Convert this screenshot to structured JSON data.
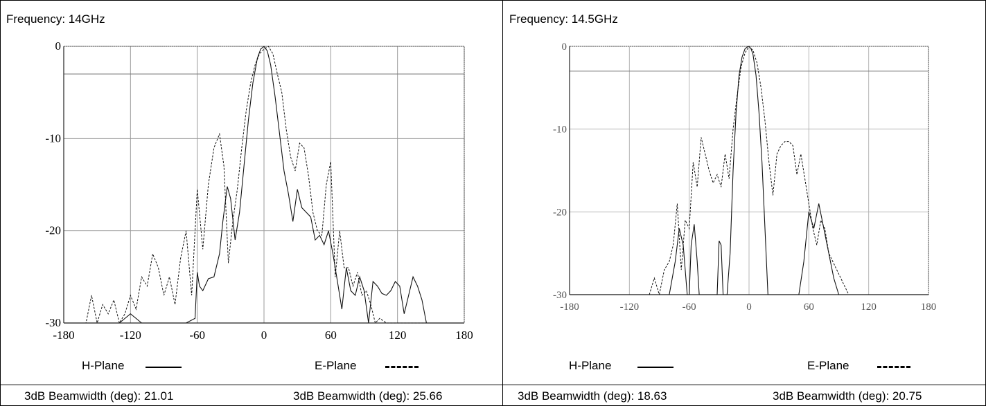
{
  "panels": [
    {
      "frequency_label": "Frequency: 14GHz",
      "h_plane_label": "H-Plane",
      "e_plane_label": "E-Plane",
      "h_beamwidth": "3dB Beamwidth (deg): 21.01",
      "e_beamwidth": "3dB Beamwidth (deg): 25.66"
    },
    {
      "frequency_label": "Frequency: 14.5GHz",
      "h_plane_label": "H-Plane",
      "e_plane_label": "E-Plane",
      "h_beamwidth": "3dB Beamwidth (deg): 18.63",
      "e_beamwidth": "3dB Beamwidth (deg): 20.75"
    }
  ],
  "chart_data": [
    {
      "type": "line",
      "xlim": [
        -180,
        180
      ],
      "ylim": [
        -30,
        0
      ],
      "x_ticks": [
        "-180",
        "-120",
        "-60",
        "0",
        "60",
        "120",
        "180"
      ],
      "y_ticks": [
        "0",
        "-10",
        "-20",
        "-30"
      ],
      "grid": true,
      "series": [
        {
          "name": "H-Plane",
          "style": "solid",
          "x": [
            -180,
            -150,
            -130,
            -120,
            -110,
            -100,
            -90,
            -80,
            -70,
            -62,
            -60,
            -58,
            -55,
            -50,
            -45,
            -40,
            -37,
            -33,
            -30,
            -26,
            -22,
            -18,
            -14,
            -10,
            -6,
            -3,
            0,
            3,
            6,
            10,
            14,
            18,
            22,
            26,
            30,
            34,
            38,
            42,
            46,
            50,
            54,
            58,
            62,
            66,
            70,
            74,
            78,
            82,
            86,
            90,
            94,
            98,
            102,
            106,
            110,
            114,
            118,
            122,
            126,
            130,
            134,
            138,
            142,
            146,
            150,
            160,
            180
          ],
          "y": [
            -30,
            -30,
            -30,
            -29,
            -30,
            -30,
            -30,
            -30,
            -30,
            -29.5,
            -24.5,
            -26,
            -26.5,
            -25.2,
            -25,
            -22.5,
            -19,
            -15.2,
            -16.5,
            -21,
            -18,
            -13,
            -8,
            -4,
            -1.3,
            -0.3,
            0,
            -0.5,
            -2,
            -5.5,
            -9.5,
            -13.5,
            -16,
            -19,
            -15.5,
            -17.5,
            -18,
            -18.5,
            -21,
            -20.5,
            -21.5,
            -20,
            -22.5,
            -25.5,
            -28.5,
            -24,
            -26.5,
            -27,
            -25,
            -26.5,
            -30,
            -25.5,
            -26,
            -26.8,
            -27,
            -26.5,
            -25.5,
            -26,
            -29,
            -27,
            -25,
            -26,
            -27.5,
            -30,
            -30,
            -30,
            -30
          ]
        },
        {
          "name": "E-Plane",
          "style": "dashed",
          "x": [
            -180,
            -170,
            -160,
            -155,
            -150,
            -145,
            -140,
            -135,
            -130,
            -125,
            -120,
            -115,
            -110,
            -105,
            -100,
            -95,
            -90,
            -85,
            -80,
            -75,
            -70,
            -65,
            -60,
            -55,
            -50,
            -45,
            -40,
            -36,
            -32,
            -28,
            -24,
            -20,
            -16,
            -12,
            -8,
            -4,
            0,
            4,
            8,
            12,
            16,
            20,
            24,
            28,
            32,
            36,
            40,
            44,
            48,
            52,
            56,
            60,
            64,
            68,
            72,
            76,
            80,
            84,
            88,
            92,
            96,
            100,
            104,
            110,
            120,
            180
          ],
          "y": [
            -30,
            -30,
            -30,
            -27,
            -30,
            -28,
            -29,
            -27.5,
            -30,
            -29,
            -27,
            -28.5,
            -25,
            -26,
            -22.5,
            -24,
            -27,
            -25,
            -28,
            -23,
            -20,
            -27,
            -15.5,
            -22,
            -15,
            -11,
            -9.5,
            -13,
            -23.5,
            -19,
            -15.5,
            -11,
            -7,
            -4,
            -2,
            -0.8,
            -0.3,
            0,
            -0.8,
            -3,
            -5,
            -9,
            -12,
            -13.5,
            -10.5,
            -11,
            -14,
            -18,
            -20,
            -20.5,
            -15,
            -12.5,
            -25,
            -20,
            -24,
            -24,
            -26,
            -24.5,
            -27,
            -26.5,
            -28,
            -30,
            -29.5,
            -30,
            -30,
            -30
          ]
        }
      ]
    },
    {
      "type": "line",
      "xlim": [
        -180,
        180
      ],
      "ylim": [
        -30,
        0
      ],
      "x_ticks": [
        "-180",
        "-120",
        "-60",
        "0",
        "60",
        "120",
        "180"
      ],
      "y_ticks": [
        "0",
        "-10",
        "-20",
        "-30"
      ],
      "grid": true,
      "series": [
        {
          "name": "H-Plane",
          "style": "solid",
          "x": [
            -180,
            -80,
            -74,
            -70,
            -66,
            -62,
            -60,
            -58,
            -55,
            -52,
            -50,
            -47,
            -45,
            -40,
            -36,
            -32,
            -30,
            -28,
            -26,
            -24,
            -22,
            -19,
            -16,
            -13,
            -10,
            -7,
            -4,
            -2,
            0,
            2,
            4,
            7,
            10,
            13,
            16,
            19,
            22,
            25,
            28,
            31,
            35,
            40,
            45,
            50,
            55,
            60,
            65,
            70,
            75,
            80,
            85,
            90,
            180
          ],
          "y": [
            -30,
            -30,
            -26,
            -22,
            -24,
            -30,
            -30,
            -24,
            -21.5,
            -26,
            -30,
            -30,
            -30,
            -30,
            -30,
            -30,
            -23.5,
            -24,
            -30,
            -30,
            -30,
            -25,
            -15,
            -8,
            -3.5,
            -1.3,
            -0.3,
            -0.1,
            0,
            -0.3,
            -1,
            -3.5,
            -8,
            -14,
            -22,
            -30,
            -30,
            -30,
            -30,
            -30,
            -30,
            -30,
            -30,
            -30,
            -26,
            -20,
            -22,
            -19,
            -22,
            -25,
            -28,
            -30,
            -30
          ]
        },
        {
          "name": "E-Plane",
          "style": "dashed",
          "x": [
            -180,
            -100,
            -95,
            -90,
            -85,
            -80,
            -76,
            -72,
            -68,
            -64,
            -60,
            -56,
            -52,
            -48,
            -44,
            -40,
            -36,
            -32,
            -28,
            -24,
            -20,
            -16,
            -12,
            -8,
            -4,
            0,
            4,
            8,
            12,
            16,
            20,
            24,
            28,
            32,
            36,
            40,
            44,
            48,
            52,
            56,
            60,
            64,
            68,
            72,
            76,
            80,
            84,
            88,
            92,
            96,
            100,
            105,
            110,
            180
          ],
          "y": [
            -30,
            -30,
            -28,
            -30,
            -27,
            -26,
            -24,
            -19,
            -27,
            -21,
            -22,
            -14,
            -17,
            -11,
            -13,
            -15,
            -16.5,
            -15.5,
            -17,
            -13,
            -16,
            -10,
            -6,
            -2.5,
            -0.8,
            0,
            -0.5,
            -2,
            -5,
            -9,
            -14,
            -18,
            -13,
            -12,
            -11.5,
            -11.5,
            -12,
            -15.5,
            -13,
            -16,
            -19,
            -22,
            -24,
            -21,
            -22,
            -25,
            -26,
            -27,
            -28,
            -29,
            -30,
            -30,
            -30,
            -30
          ]
        }
      ]
    }
  ]
}
